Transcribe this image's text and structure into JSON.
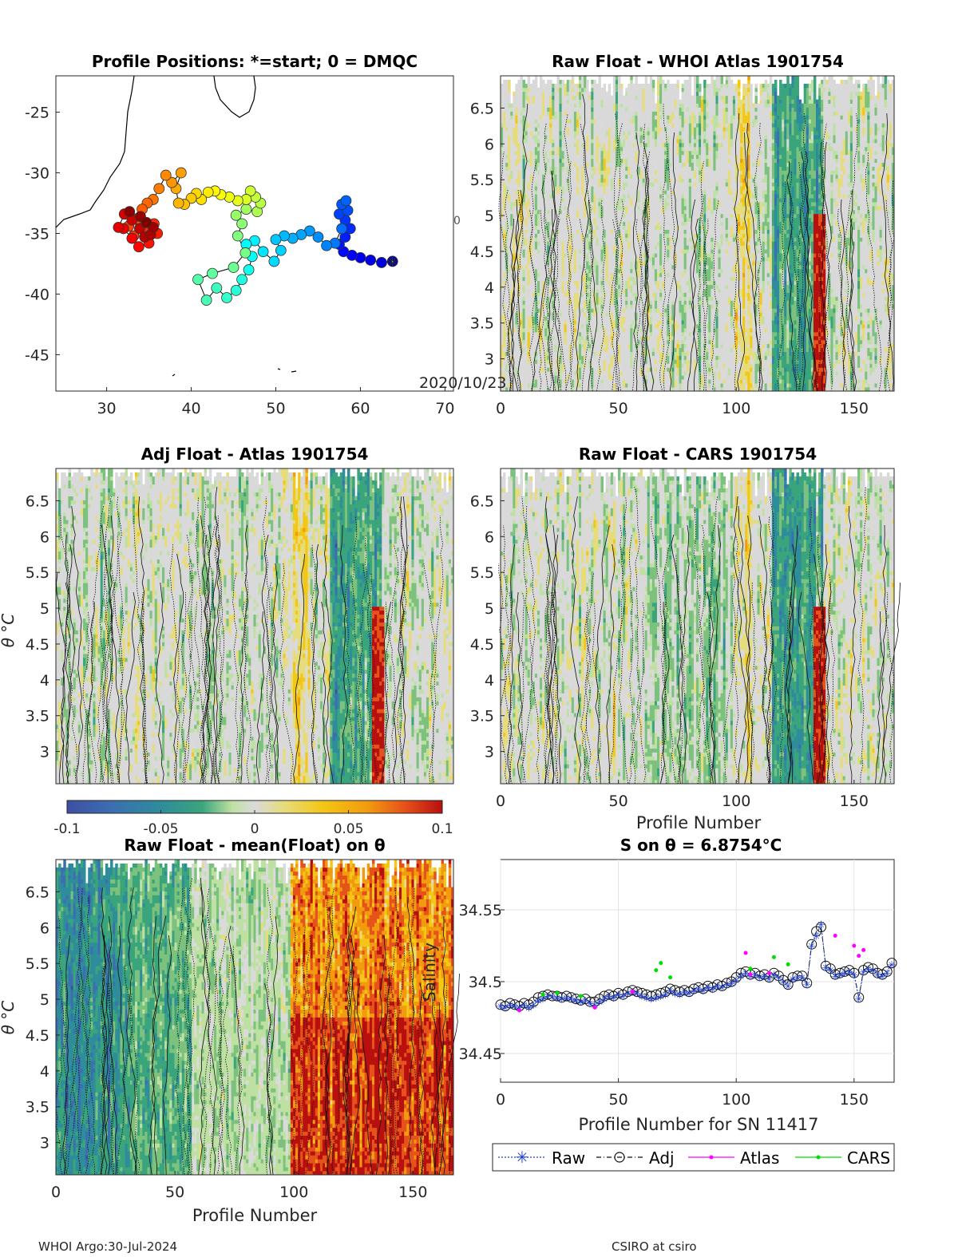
{
  "colors": {
    "cmap": [
      "#3e4fa3",
      "#3b6fb0",
      "#2f8c9b",
      "#3aa57c",
      "#7cc27e",
      "#bfe0a3",
      "#dadada",
      "#e6dc7a",
      "#f3c716",
      "#f29b0f",
      "#e5521a",
      "#b80f0f"
    ],
    "grey": "#d9d9d9",
    "raw": "#1f3fd6",
    "adj": "#111111",
    "atlas": "#ff00ff",
    "cars": "#00dd00"
  },
  "chart_data": [
    {
      "id": "map",
      "type": "scatter",
      "title": "Profile Positions: *=start; 0 = DMQC",
      "xlim": [
        24,
        71
      ],
      "ylim": [
        -48,
        -22
      ],
      "xticks": [
        30,
        40,
        50,
        60,
        70
      ],
      "yticks": [
        -25,
        -30,
        -35,
        -40,
        -45
      ],
      "annotation": "2020/10/23",
      "track": [
        [
          63.8,
          -37.3
        ],
        [
          62.5,
          -37.4
        ],
        [
          61.2,
          -37.2
        ],
        [
          60,
          -37
        ],
        [
          59,
          -36.8
        ],
        [
          58,
          -36.5
        ],
        [
          57.5,
          -35.9
        ],
        [
          58.2,
          -35.3
        ],
        [
          58.8,
          -34.6
        ],
        [
          58.2,
          -33.9
        ],
        [
          57.5,
          -33.4
        ],
        [
          58.5,
          -33.1
        ],
        [
          57.8,
          -32.6
        ],
        [
          58.3,
          -32.3
        ],
        [
          57.8,
          -34.6
        ],
        [
          57,
          -35.8
        ],
        [
          56,
          -36
        ],
        [
          55,
          -35.3
        ],
        [
          54,
          -34.8
        ],
        [
          53,
          -35.1
        ],
        [
          52,
          -35.4
        ],
        [
          51,
          -35.2
        ],
        [
          50,
          -35.5
        ],
        [
          50.6,
          -36.4
        ],
        [
          49.8,
          -37.3
        ],
        [
          48.5,
          -36.5
        ],
        [
          47.5,
          -35.6
        ],
        [
          46.5,
          -35.9
        ],
        [
          47.2,
          -36.9
        ],
        [
          46.8,
          -38
        ],
        [
          46,
          -38.8
        ],
        [
          45.3,
          -39.7
        ],
        [
          44.2,
          -40.3
        ],
        [
          43,
          -39.5
        ],
        [
          41.8,
          -40.5
        ],
        [
          40.8,
          -38.8
        ],
        [
          42.5,
          -38.3
        ],
        [
          45,
          -37.8
        ],
        [
          46.4,
          -36.6
        ],
        [
          45.5,
          -35.2
        ],
        [
          46,
          -34.2
        ],
        [
          45.3,
          -33.5
        ],
        [
          46.5,
          -33
        ],
        [
          47.8,
          -33.2
        ],
        [
          48.2,
          -32.5
        ],
        [
          47.6,
          -32
        ],
        [
          47,
          -31.5
        ],
        [
          46.5,
          -32.2
        ],
        [
          45.5,
          -32.3
        ],
        [
          44.5,
          -32
        ],
        [
          43.5,
          -31.8
        ],
        [
          42.8,
          -31.5
        ],
        [
          42,
          -31.6
        ],
        [
          41.2,
          -32.2
        ],
        [
          40.6,
          -31.7
        ],
        [
          40,
          -32.1
        ],
        [
          39.2,
          -32.6
        ],
        [
          38.5,
          -32.5
        ],
        [
          38.2,
          -31.3
        ],
        [
          38.8,
          -30
        ],
        [
          37.7,
          -30.8
        ],
        [
          37,
          -30.2
        ],
        [
          36.2,
          -31.3
        ],
        [
          35.5,
          -32.2
        ],
        [
          34.8,
          -32.5
        ],
        [
          34.2,
          -33
        ],
        [
          33.6,
          -33.8
        ],
        [
          32.6,
          -34.4
        ],
        [
          33.2,
          -35.2
        ],
        [
          34.5,
          -34.6
        ],
        [
          35.6,
          -34.2
        ],
        [
          36,
          -35
        ],
        [
          35,
          -35.8
        ],
        [
          33.8,
          -36.1
        ],
        [
          33,
          -35.4
        ],
        [
          32,
          -34.6
        ],
        [
          31.4,
          -34.5
        ],
        [
          32.1,
          -33.4
        ],
        [
          33,
          -33.9
        ],
        [
          33.9,
          -34.6
        ],
        [
          34.5,
          -35.3
        ],
        [
          35.2,
          -35.1
        ],
        [
          35.5,
          -34.5
        ],
        [
          34,
          -33.6
        ],
        [
          32.7,
          -33.2
        ],
        [
          34.7,
          -34.1
        ]
      ]
    },
    {
      "id": "panel1",
      "type": "heatmap",
      "title": "Raw Float - WHOI Atlas  1901754",
      "xlim": [
        0,
        167
      ],
      "ylim": [
        2.55,
        6.95
      ],
      "xticks": [
        0,
        50,
        100,
        150
      ],
      "yticks": [
        6.5,
        6,
        5.5,
        5,
        4.5,
        4,
        3.5,
        3
      ],
      "cells": "161 profiles x 80 theta levels",
      "overflow_label": "0"
    },
    {
      "id": "panel2",
      "type": "heatmap",
      "title": "Adj Float - Atlas  1901754",
      "ylabel": "θ °C",
      "xlim": [
        0,
        167
      ],
      "ylim": [
        2.55,
        6.95
      ],
      "yticks": [
        6.5,
        6,
        5.5,
        5,
        4.5,
        4,
        3.5,
        3
      ],
      "colorbar": {
        "vmin": -0.1,
        "vmax": 0.1,
        "ticks": [
          "-0.1",
          "-0.05",
          "0",
          "0.05",
          "0.1"
        ]
      }
    },
    {
      "id": "panel3",
      "type": "heatmap",
      "title": "Raw Float - CARS  1901754",
      "xlabel": "Profile Number",
      "xlim": [
        0,
        167
      ],
      "ylim": [
        2.55,
        6.95
      ],
      "xticks": [
        0,
        50,
        100,
        150
      ],
      "yticks": [
        6.5,
        6,
        5.5,
        5,
        4.5,
        4,
        3.5,
        3
      ]
    },
    {
      "id": "panel4",
      "type": "heatmap",
      "title": "Raw Float - mean(Float) on θ",
      "xlabel": "Profile Number",
      "ylabel": "θ °C",
      "xlim": [
        0,
        167
      ],
      "ylim": [
        2.55,
        6.95
      ],
      "xticks": [
        0,
        50,
        100,
        150
      ],
      "yticks": [
        6.5,
        6,
        5.5,
        5,
        4.5,
        4,
        3.5,
        3
      ]
    },
    {
      "id": "salinity",
      "type": "line",
      "title": "S on θ = 6.8754°C",
      "xlabel": "Profile Number for SN 11417",
      "ylabel": "Salinity",
      "xlim": [
        0,
        167
      ],
      "ylim": [
        34.43,
        34.585
      ],
      "xticks": [
        0,
        50,
        100,
        150
      ],
      "yticks": [
        34.45,
        34.5,
        34.55
      ],
      "ytick_labels": [
        "34.45",
        "34.5",
        "34.55"
      ],
      "legend": [
        "Raw",
        "Adj",
        "Atlas",
        "CARS"
      ],
      "legend_position": "bottom",
      "raw": [
        [
          0,
          34.483
        ],
        [
          2,
          34.482
        ],
        [
          4,
          34.484
        ],
        [
          6,
          34.483
        ],
        [
          8,
          34.482
        ],
        [
          10,
          34.484
        ],
        [
          12,
          34.482
        ],
        [
          14,
          34.484
        ],
        [
          16,
          34.487
        ],
        [
          18,
          34.488
        ],
        [
          20,
          34.49
        ],
        [
          22,
          34.49
        ],
        [
          24,
          34.489
        ],
        [
          26,
          34.488
        ],
        [
          28,
          34.489
        ],
        [
          30,
          34.488
        ],
        [
          32,
          34.487
        ],
        [
          34,
          34.486
        ],
        [
          36,
          34.487
        ],
        [
          38,
          34.485
        ],
        [
          40,
          34.484
        ],
        [
          42,
          34.486
        ],
        [
          44,
          34.488
        ],
        [
          46,
          34.49
        ],
        [
          48,
          34.489
        ],
        [
          50,
          34.491
        ],
        [
          52,
          34.49
        ],
        [
          54,
          34.492
        ],
        [
          56,
          34.493
        ],
        [
          58,
          34.492
        ],
        [
          60,
          34.49
        ],
        [
          62,
          34.489
        ],
        [
          64,
          34.488
        ],
        [
          66,
          34.489
        ],
        [
          68,
          34.49
        ],
        [
          70,
          34.491
        ],
        [
          72,
          34.494
        ],
        [
          74,
          34.492
        ],
        [
          76,
          34.491
        ],
        [
          78,
          34.493
        ],
        [
          80,
          34.492
        ],
        [
          82,
          34.494
        ],
        [
          84,
          34.495
        ],
        [
          86,
          34.494
        ],
        [
          88,
          34.496
        ],
        [
          90,
          34.495
        ],
        [
          92,
          34.497
        ],
        [
          94,
          34.496
        ],
        [
          96,
          34.498
        ],
        [
          98,
          34.499
        ],
        [
          100,
          34.501
        ],
        [
          102,
          34.504
        ],
        [
          104,
          34.506
        ],
        [
          106,
          34.504
        ],
        [
          108,
          34.505
        ],
        [
          110,
          34.503
        ],
        [
          112,
          34.504
        ],
        [
          114,
          34.502
        ],
        [
          116,
          34.505
        ],
        [
          118,
          34.503
        ],
        [
          120,
          34.5
        ],
        [
          122,
          34.497
        ],
        [
          124,
          34.502
        ],
        [
          126,
          34.503
        ],
        [
          128,
          34.503
        ],
        [
          130,
          34.498
        ],
        [
          132,
          34.525
        ],
        [
          134,
          34.532
        ],
        [
          136,
          34.54
        ],
        [
          138,
          34.51
        ],
        [
          140,
          34.508
        ],
        [
          142,
          34.504
        ],
        [
          144,
          34.505
        ],
        [
          146,
          34.506
        ],
        [
          148,
          34.507
        ],
        [
          150,
          34.505
        ],
        [
          152,
          34.488
        ],
        [
          154,
          34.507
        ],
        [
          156,
          34.509
        ],
        [
          158,
          34.508
        ],
        [
          160,
          34.505
        ],
        [
          162,
          34.504
        ],
        [
          164,
          34.506
        ],
        [
          166,
          34.512
        ]
      ],
      "adj": [
        [
          0,
          34.484
        ],
        [
          2,
          34.483
        ],
        [
          4,
          34.485
        ],
        [
          6,
          34.484
        ],
        [
          8,
          34.483
        ],
        [
          10,
          34.485
        ],
        [
          12,
          34.484
        ],
        [
          14,
          34.486
        ],
        [
          16,
          34.489
        ],
        [
          18,
          34.49
        ],
        [
          20,
          34.491
        ],
        [
          22,
          34.49
        ],
        [
          24,
          34.49
        ],
        [
          26,
          34.489
        ],
        [
          28,
          34.49
        ],
        [
          30,
          34.489
        ],
        [
          32,
          34.488
        ],
        [
          34,
          34.487
        ],
        [
          36,
          34.488
        ],
        [
          38,
          34.486
        ],
        [
          40,
          34.486
        ],
        [
          42,
          34.488
        ],
        [
          44,
          34.49
        ],
        [
          46,
          34.491
        ],
        [
          48,
          34.49
        ],
        [
          50,
          34.492
        ],
        [
          52,
          34.491
        ],
        [
          54,
          34.493
        ],
        [
          56,
          34.494
        ],
        [
          58,
          34.493
        ],
        [
          60,
          34.492
        ],
        [
          62,
          34.491
        ],
        [
          64,
          34.49
        ],
        [
          66,
          34.491
        ],
        [
          68,
          34.492
        ],
        [
          70,
          34.493
        ],
        [
          72,
          34.495
        ],
        [
          74,
          34.494
        ],
        [
          76,
          34.493
        ],
        [
          78,
          34.494
        ],
        [
          80,
          34.493
        ],
        [
          82,
          34.495
        ],
        [
          84,
          34.496
        ],
        [
          86,
          34.495
        ],
        [
          88,
          34.497
        ],
        [
          90,
          34.496
        ],
        [
          92,
          34.498
        ],
        [
          94,
          34.497
        ],
        [
          96,
          34.499
        ],
        [
          98,
          34.5
        ],
        [
          100,
          34.503
        ],
        [
          102,
          34.506
        ],
        [
          104,
          34.507
        ],
        [
          106,
          34.505
        ],
        [
          108,
          34.506
        ],
        [
          110,
          34.504
        ],
        [
          112,
          34.505
        ],
        [
          114,
          34.503
        ],
        [
          116,
          34.506
        ],
        [
          118,
          34.504
        ],
        [
          120,
          34.501
        ],
        [
          122,
          34.498
        ],
        [
          124,
          34.503
        ],
        [
          126,
          34.504
        ],
        [
          128,
          34.504
        ],
        [
          130,
          34.499
        ],
        [
          132,
          34.526
        ],
        [
          134,
          34.535
        ],
        [
          136,
          34.538
        ],
        [
          138,
          34.511
        ],
        [
          140,
          34.509
        ],
        [
          142,
          34.505
        ],
        [
          144,
          34.506
        ],
        [
          146,
          34.507
        ],
        [
          148,
          34.508
        ],
        [
          150,
          34.506
        ],
        [
          152,
          34.489
        ],
        [
          154,
          34.508
        ],
        [
          156,
          34.51
        ],
        [
          158,
          34.509
        ],
        [
          160,
          34.506
        ],
        [
          162,
          34.505
        ],
        [
          164,
          34.507
        ],
        [
          166,
          34.513
        ]
      ],
      "atlas": [
        [
          8,
          34.48
        ],
        [
          40,
          34.482
        ],
        [
          56,
          34.493
        ],
        [
          104,
          34.52
        ],
        [
          106,
          34.505
        ],
        [
          114,
          34.506
        ],
        [
          142,
          34.532
        ],
        [
          150,
          34.525
        ],
        [
          152,
          34.518
        ],
        [
          154,
          34.522
        ]
      ],
      "cars": [
        [
          18,
          34.491
        ],
        [
          24,
          34.492
        ],
        [
          34,
          34.49
        ],
        [
          66,
          34.508
        ],
        [
          68,
          34.513
        ],
        [
          72,
          34.503
        ],
        [
          106,
          34.509
        ],
        [
          116,
          34.517
        ],
        [
          122,
          34.512
        ]
      ]
    }
  ],
  "footer": {
    "left": "WHOI Argo:30-Jul-2024",
    "right": "CSIRO at csiro"
  }
}
